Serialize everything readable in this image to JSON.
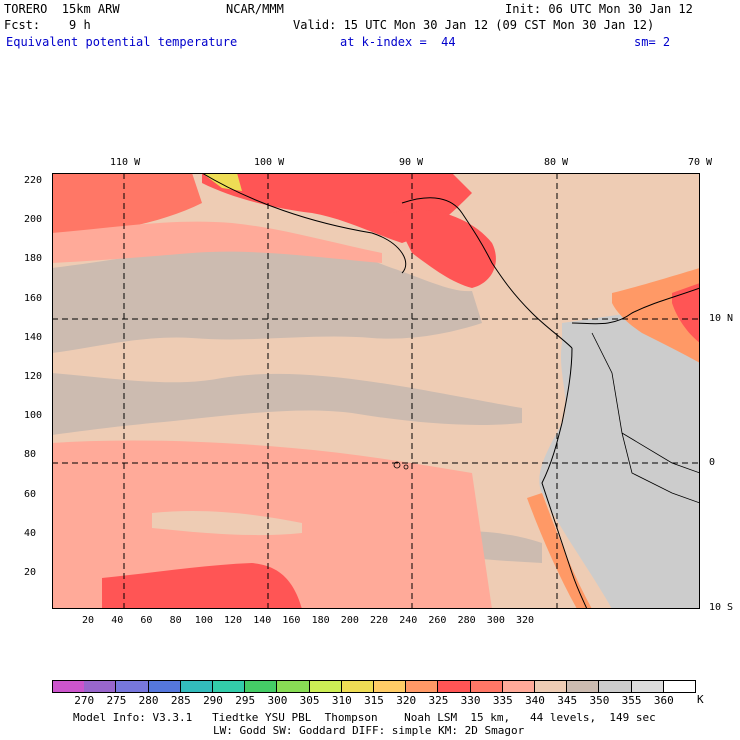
{
  "header": {
    "model": "TORERO  15km ARW",
    "org": "NCAR/MMM",
    "init": "Init: 06 UTC Mon 30 Jan 12",
    "fcst": "Fcst:    9 h",
    "valid": "Valid: 15 UTC Mon 30 Jan 12 (09 CST Mon 30 Jan 12)",
    "field": "Equivalent potential temperature",
    "level": "at k-index =  44",
    "smooth": "sm= 2"
  },
  "map": {
    "lon_labels": [
      "110 W",
      "100 W",
      "90 W",
      "80 W",
      "70 W"
    ],
    "lat_labels": [
      "10 N",
      "0",
      "10 S"
    ],
    "y_ticks": [
      "220",
      "200",
      "180",
      "160",
      "140",
      "120",
      "100",
      "80",
      "60",
      "40",
      "20"
    ],
    "x_ticks": [
      "20",
      "40",
      "60",
      "80",
      "100",
      "120",
      "140",
      "160",
      "180",
      "200",
      "220",
      "240",
      "260",
      "280",
      "300",
      "320"
    ]
  },
  "colorbar": {
    "unit": "K",
    "labels": [
      "270",
      "275",
      "280",
      "285",
      "290",
      "295",
      "300",
      "305",
      "310",
      "315",
      "320",
      "325",
      "330",
      "335",
      "340",
      "345",
      "350",
      "355",
      "360"
    ],
    "colors": [
      "#cc55cc",
      "#9966cc",
      "#7777dd",
      "#5577dd",
      "#33bbbb",
      "#33ccaa",
      "#44cc66",
      "#88dd55",
      "#ccee55",
      "#eedd55",
      "#ffcc66",
      "#ff9966",
      "#ff5555",
      "#ff7766",
      "#ffaa99",
      "#eeccb4",
      "#ccbbb0",
      "#cccccc",
      "#dddddd",
      "#ffffff"
    ]
  },
  "footer": {
    "line1": "Model Info: V3.3.1   Tiedtke YSU PBL  Thompson    Noah LSM  15 km,   44 levels,  149 sec",
    "line2": "LW: Godd SW: Goddard DIFF: simple KM: 2D Smagor"
  }
}
